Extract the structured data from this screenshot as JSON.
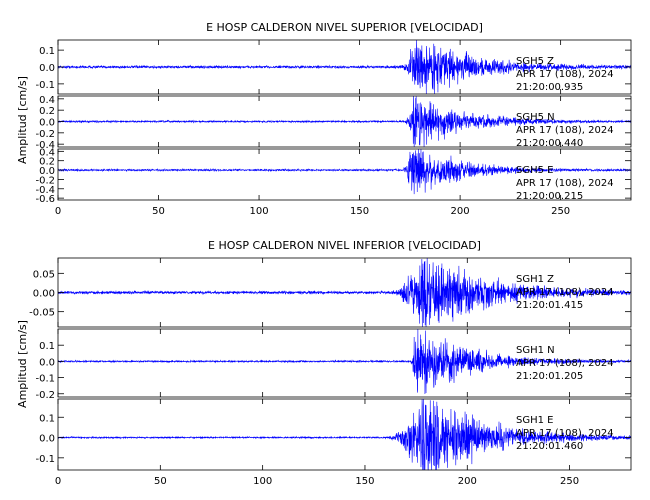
{
  "colors": {
    "trace": "#0000ff",
    "axes": "#000000",
    "text": "#000000"
  },
  "chart_data": [
    {
      "type": "line",
      "title": "E HOSP CALDERON NIVEL SUPERIOR [VELOCIDAD]",
      "ylabel": "Amplitud [cm/s]",
      "xlim": [
        0,
        285
      ],
      "xticks": [
        "0",
        "50",
        "100",
        "150",
        "200",
        "250"
      ],
      "series": [
        {
          "name": "SGH5   Z",
          "date": "APR 17 (108), 2024",
          "time": "21:20:00.935",
          "ylim": [
            -0.16,
            0.16
          ],
          "yticks": [
            "-0.1",
            "0.0",
            "0.1"
          ],
          "noise": 0.006,
          "burst_start": 170,
          "burst_peak": 178,
          "burst_peak_amp": 0.15,
          "decay_s": 25
        },
        {
          "name": "SGH5   N",
          "date": "APR 17 (108), 2024",
          "time": "21:20:00.440",
          "ylim": [
            -0.45,
            0.45
          ],
          "yticks": [
            "-0.4",
            "-0.2",
            "0.0",
            "0.2",
            "0.4"
          ],
          "noise": 0.012,
          "burst_start": 172,
          "burst_peak": 177,
          "burst_peak_amp": 0.42,
          "decay_s": 22
        },
        {
          "name": "SGH5   E",
          "date": "APR 17 (108), 2024",
          "time": "21:20:00.215",
          "ylim": [
            -0.64,
            0.45
          ],
          "yticks": [
            "-0.6",
            "-0.4",
            "-0.2",
            "0.0",
            "0.2",
            "0.4"
          ],
          "noise": 0.015,
          "burst_start": 171,
          "burst_peak": 176,
          "burst_peak_amp": 0.5,
          "decay_s": 20
        }
      ]
    },
    {
      "type": "line",
      "title": "E HOSP CALDERON NIVEL INFERIOR [VELOCIDAD]",
      "ylabel": "Amplitud [cm/s]",
      "xlim": [
        0,
        280
      ],
      "xticks": [
        "0",
        "50",
        "100",
        "150",
        "200",
        "250"
      ],
      "series": [
        {
          "name": "SGH1   Z",
          "date": "APR 17 (108), 2024",
          "time": "21:20:01.415",
          "ylim": [
            -0.09,
            0.09
          ],
          "yticks": [
            "-0.05",
            "0.00",
            "0.05"
          ],
          "noise": 0.003,
          "burst_start": 162,
          "burst_peak": 178,
          "burst_peak_amp": 0.085,
          "decay_s": 28
        },
        {
          "name": "SGH1   N",
          "date": "APR 17 (108), 2024",
          "time": "21:20:01.205",
          "ylim": [
            -0.22,
            0.2
          ],
          "yticks": [
            "-0.2",
            "-0.1",
            "0.0",
            "0.1"
          ],
          "noise": 0.004,
          "burst_start": 172,
          "burst_peak": 175,
          "burst_peak_amp": 0.2,
          "decay_s": 22
        },
        {
          "name": "SGH1   E",
          "date": "APR 17 (108), 2024",
          "time": "21:20:01.460",
          "ylim": [
            -0.16,
            0.19
          ],
          "yticks": [
            "-0.1",
            "0.0",
            "0.1"
          ],
          "noise": 0.003,
          "burst_start": 160,
          "burst_peak": 179,
          "burst_peak_amp": 0.18,
          "decay_s": 28
        }
      ]
    }
  ]
}
